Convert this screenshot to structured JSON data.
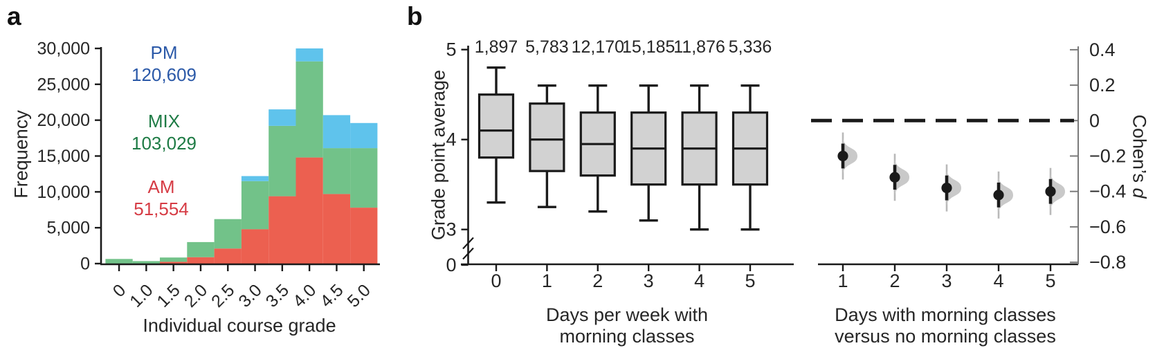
{
  "panels": {
    "a": {
      "letter": "a"
    },
    "b": {
      "letter": "b"
    }
  },
  "colors": {
    "am_fill": "#ec6050",
    "mix_fill": "#72c289",
    "pm_fill": "#5fc3ec",
    "am_text": "#d63c45",
    "mix_text": "#1e7b45",
    "pm_text": "#2b59a8",
    "box_fill": "#d2d2d2",
    "axis": "#1a1a1a",
    "right_axis": "#7a7a7a",
    "violin": "#c9c9c9",
    "violin_stem": "#b9b9b9"
  },
  "chart_data": [
    {
      "id": "grade-histogram",
      "type": "bar",
      "stacked": true,
      "xlabel": "Individual course grade",
      "ylabel": "Frequency",
      "categories": [
        "0",
        "1.0",
        "1.5",
        "2.0",
        "2.5",
        "3.0",
        "3.5",
        "4.0",
        "4.5",
        "5.0"
      ],
      "series": [
        {
          "name": "AM",
          "total": "51,554",
          "color": "#ec6050",
          "values": [
            0,
            0,
            250,
            900,
            2100,
            4800,
            9400,
            14800,
            9700,
            7800
          ]
        },
        {
          "name": "MIX",
          "total": "103,029",
          "color": "#72c289",
          "values": [
            650,
            350,
            600,
            2100,
            4100,
            6700,
            9800,
            13400,
            6400,
            8300
          ]
        },
        {
          "name": "PM",
          "total": "120,609",
          "color": "#5fc3ec",
          "values": [
            0,
            0,
            0,
            0,
            0,
            700,
            2300,
            1800,
            4600,
            3500
          ]
        }
      ],
      "annotations": [
        {
          "label": "PM",
          "value": "120,609"
        },
        {
          "label": "MIX",
          "value": "103,029"
        },
        {
          "label": "AM",
          "value": "51,554"
        }
      ],
      "yticks": [
        0,
        5000,
        10000,
        15000,
        20000,
        25000,
        30000
      ],
      "ytick_labels": [
        "0",
        "5,000",
        "10,000",
        "15,000",
        "20,000",
        "25,000",
        "30,000"
      ],
      "ylim": [
        0,
        30000
      ],
      "grid": false
    },
    {
      "id": "gpa-boxplots",
      "type": "box",
      "xlabel_line1": "Days per week with",
      "xlabel_line2": "morning classes",
      "ylabel": "Grade point average",
      "categories": [
        "0",
        "1",
        "2",
        "3",
        "4",
        "5"
      ],
      "counts": [
        "1,897",
        "5,783",
        "12,170",
        "15,185",
        "11,876",
        "5,336"
      ],
      "boxes": [
        {
          "whisker_low": 3.3,
          "q1": 3.8,
          "median": 4.1,
          "q3": 4.5,
          "whisker_high": 4.8
        },
        {
          "whisker_low": 3.25,
          "q1": 3.65,
          "median": 4.0,
          "q3": 4.4,
          "whisker_high": 4.6
        },
        {
          "whisker_low": 3.2,
          "q1": 3.6,
          "median": 3.95,
          "q3": 4.3,
          "whisker_high": 4.6
        },
        {
          "whisker_low": 3.1,
          "q1": 3.5,
          "median": 3.9,
          "q3": 4.3,
          "whisker_high": 4.6
        },
        {
          "whisker_low": 3.0,
          "q1": 3.5,
          "median": 3.9,
          "q3": 4.3,
          "whisker_high": 4.6
        },
        {
          "whisker_low": 3.0,
          "q1": 3.5,
          "median": 3.9,
          "q3": 4.3,
          "whisker_high": 4.6
        }
      ],
      "ytick_labels": [
        "5",
        "4",
        "3",
        "0"
      ],
      "ytick_values": [
        5,
        4,
        3,
        0
      ],
      "axis_break_between": [
        "3",
        "0"
      ],
      "ylim_shown": [
        3,
        5
      ]
    },
    {
      "id": "cohens-d-effects",
      "type": "scatter",
      "xlabel_line1": "Days with morning classes",
      "xlabel_line2": "versus no morning classes",
      "cohens": {
        "prefix": "Cohen’s ",
        "variable": "d"
      },
      "categories": [
        "1",
        "2",
        "3",
        "4",
        "5"
      ],
      "points": [
        {
          "d": -0.2,
          "ci_low": -0.27,
          "ci_high": -0.13
        },
        {
          "d": -0.32,
          "ci_low": -0.39,
          "ci_high": -0.25
        },
        {
          "d": -0.38,
          "ci_low": -0.45,
          "ci_high": -0.31
        },
        {
          "d": -0.42,
          "ci_low": -0.49,
          "ci_high": -0.35
        },
        {
          "d": -0.4,
          "ci_low": -0.47,
          "ci_high": -0.33
        }
      ],
      "zero_line": {
        "value": 0,
        "style": "dashed"
      },
      "ytick_labels": [
        "0.4",
        "0.2",
        "0",
        "−0.2",
        "−0.4",
        "−0.6",
        "−0.8"
      ],
      "ytick_values": [
        0.4,
        0.2,
        0,
        -0.2,
        -0.4,
        -0.6,
        -0.8
      ],
      "ylim": [
        -0.8,
        0.4
      ]
    }
  ]
}
